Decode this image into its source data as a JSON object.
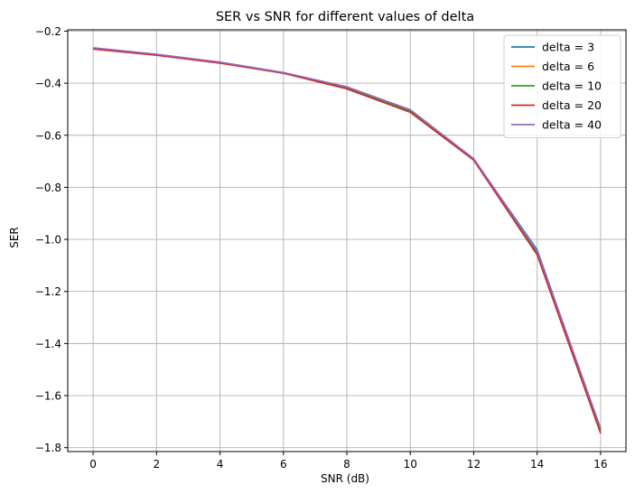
{
  "chart_data": {
    "type": "line",
    "title": "SER vs SNR for different values of delta",
    "xlabel": "SNR (dB)",
    "ylabel": "SER",
    "xlim": [
      -0.8,
      16.8
    ],
    "ylim": [
      -1.815,
      -0.195
    ],
    "xticks": [
      0,
      2,
      4,
      6,
      8,
      10,
      12,
      14,
      16
    ],
    "yticks": [
      -1.8,
      -1.6,
      -1.4,
      -1.2,
      -1.0,
      -0.8,
      -0.6,
      -0.4,
      -0.2
    ],
    "xtick_labels": [
      "0",
      "2",
      "4",
      "6",
      "8",
      "10",
      "12",
      "14",
      "16"
    ],
    "ytick_labels": [
      "−1.8",
      "−1.6",
      "−1.4",
      "−1.2",
      "−1.0",
      "−0.8",
      "−0.6",
      "−0.4",
      "−0.2"
    ],
    "grid": true,
    "legend_position": "top-right",
    "x": [
      0,
      2,
      4,
      6,
      8,
      10,
      12,
      14,
      16
    ],
    "series": [
      {
        "name": "delta = 3",
        "color": "#1f77b4",
        "values": [
          -0.265,
          -0.29,
          -0.32,
          -0.36,
          -0.415,
          -0.505,
          -0.692,
          -1.04,
          -1.73
        ]
      },
      {
        "name": "delta = 6",
        "color": "#ff7f0e",
        "values": [
          -0.268,
          -0.292,
          -0.322,
          -0.362,
          -0.42,
          -0.51,
          -0.695,
          -1.055,
          -1.74
        ]
      },
      {
        "name": "delta = 10",
        "color": "#2ca02c",
        "values": [
          -0.267,
          -0.291,
          -0.321,
          -0.361,
          -0.418,
          -0.508,
          -0.694,
          -1.05,
          -1.735
        ]
      },
      {
        "name": "delta = 20",
        "color": "#d62728",
        "values": [
          -0.269,
          -0.293,
          -0.323,
          -0.362,
          -0.422,
          -0.512,
          -0.696,
          -1.06,
          -1.745
        ]
      },
      {
        "name": "delta = 40",
        "color": "#9467bd",
        "values": [
          -0.264,
          -0.289,
          -0.319,
          -0.359,
          -0.414,
          -0.502,
          -0.69,
          -1.045,
          -1.725
        ]
      }
    ]
  }
}
